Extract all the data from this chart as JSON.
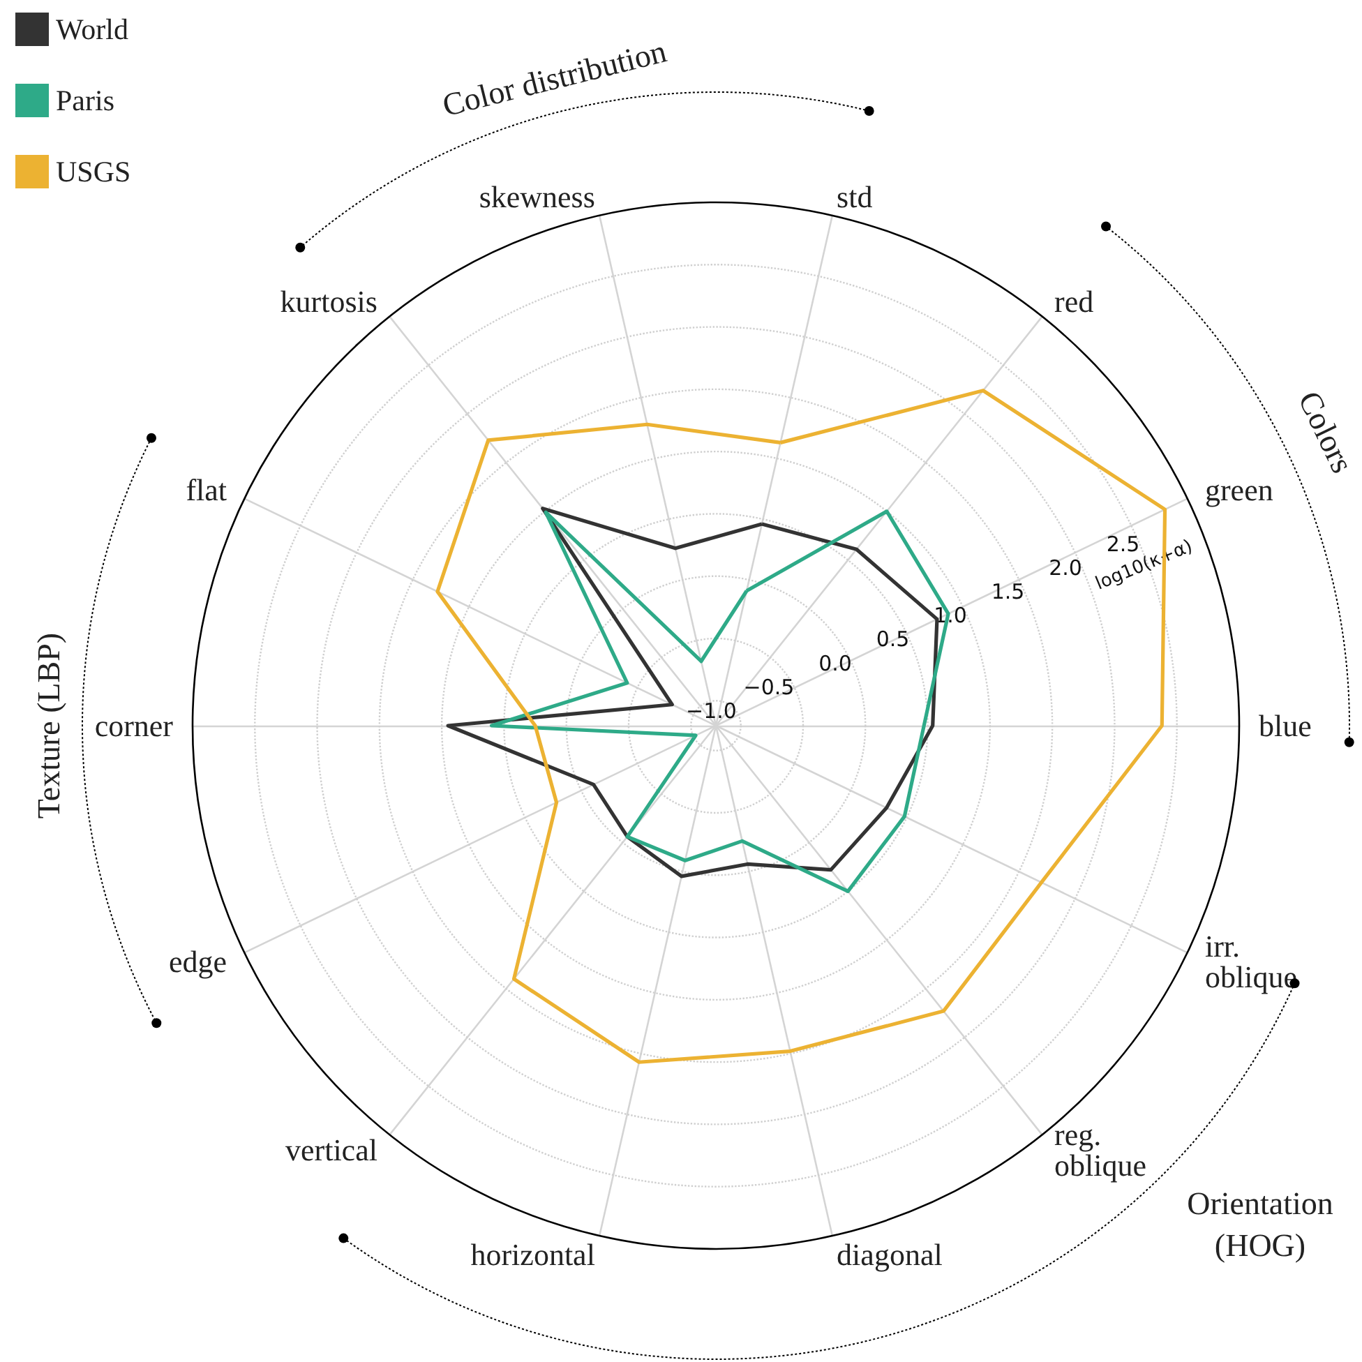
{
  "chart_data": {
    "type": "radar",
    "categories": [
      "std",
      "red",
      "green",
      "blue",
      "irr. oblique",
      "reg. oblique",
      "diagonal",
      "horizontal",
      "vertical",
      "edge",
      "corner",
      "flat",
      "kurtosis",
      "skewness"
    ],
    "series": [
      {
        "name": "World",
        "color": "#333333",
        "values": [
          0.46,
          0.61,
          0.77,
          0.54,
          0.32,
          0.28,
          -0.06,
          0.04,
          -0.06,
          -0.11,
          0.95,
          -0.81,
          1.03,
          0.26
        ]
      },
      {
        "name": "Paris",
        "color": "#2eaa88",
        "values": [
          -0.09,
          1.0,
          0.87,
          0.47,
          0.48,
          0.5,
          -0.25,
          -0.09,
          -0.06,
          -1.02,
          0.6,
          -0.41,
          0.99,
          -0.67
        ]
      },
      {
        "name": "USGS",
        "color": "#ecb232",
        "values": [
          1.13,
          2.24,
          2.8,
          2.38,
          1.7,
          1.73,
          1.48,
          1.57,
          1.4,
          0.22,
          0.25,
          1.28,
          1.73,
          1.28
        ]
      }
    ],
    "ylim": [
      -1.2,
      3.0
    ],
    "yticks": [
      {
        "value": -1,
        "label": "−1.0"
      },
      {
        "value": -0.5,
        "label": "−0.5"
      },
      {
        "value": 0,
        "label": "0.0"
      },
      0.5,
      {
        "value": 1,
        "label": "1.0"
      },
      1.5,
      {
        "value": 2,
        "label": "2.0"
      },
      2.5
    ],
    "ylabel": "log10(κ+α)",
    "annotations": [
      "Color distribution",
      "Colors",
      "Orientation (HOG)",
      "Texture (LBP)"
    ],
    "grid": true,
    "legend": "top left",
    "marker": "none",
    "line_style": "solid"
  }
}
